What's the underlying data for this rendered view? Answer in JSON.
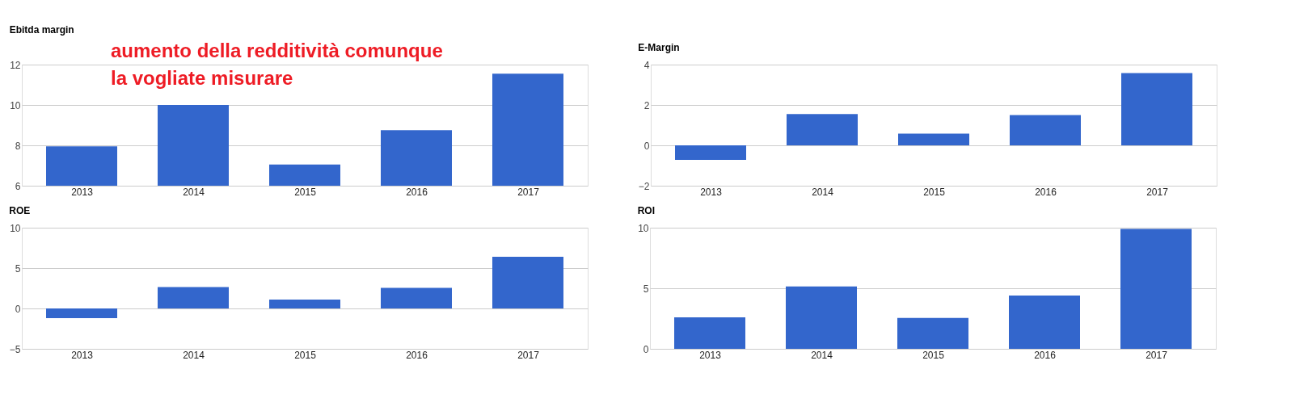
{
  "chart_data": [
    {
      "type": "bar",
      "title": "Ebitda margin",
      "categories": [
        "2013",
        "2014",
        "2015",
        "2016",
        "2017"
      ],
      "values": [
        7.95,
        10.0,
        7.05,
        8.75,
        11.55
      ],
      "color": "#3366cc",
      "ylim": [
        6,
        12
      ],
      "yticks": [
        6,
        8,
        10,
        12
      ],
      "grid": "y",
      "annotations": [
        "aumento della redditività comunque la vogliate misurare"
      ]
    },
    {
      "type": "bar",
      "title": "E-Margin",
      "categories": [
        "2013",
        "2014",
        "2015",
        "2016",
        "2017"
      ],
      "values": [
        -0.72,
        1.55,
        0.58,
        1.5,
        3.58
      ],
      "color": "#3366cc",
      "ylim": [
        -2,
        4
      ],
      "yticks": [
        -2,
        0,
        2,
        4
      ],
      "grid": "y"
    },
    {
      "type": "bar",
      "title": "ROE",
      "categories": [
        "2013",
        "2014",
        "2015",
        "2016",
        "2017"
      ],
      "values": [
        -1.2,
        2.65,
        1.1,
        2.55,
        6.4
      ],
      "color": "#3366cc",
      "ylim": [
        -5,
        10
      ],
      "yticks": [
        -5,
        0,
        5,
        10
      ],
      "grid": "y"
    },
    {
      "type": "bar",
      "title": "ROI",
      "categories": [
        "2013",
        "2014",
        "2015",
        "2016",
        "2017"
      ],
      "values": [
        2.6,
        5.15,
        2.55,
        4.4,
        9.9
      ],
      "color": "#3366cc",
      "ylim": [
        0,
        10
      ],
      "yticks": [
        0,
        5,
        10
      ],
      "grid": "y"
    }
  ]
}
